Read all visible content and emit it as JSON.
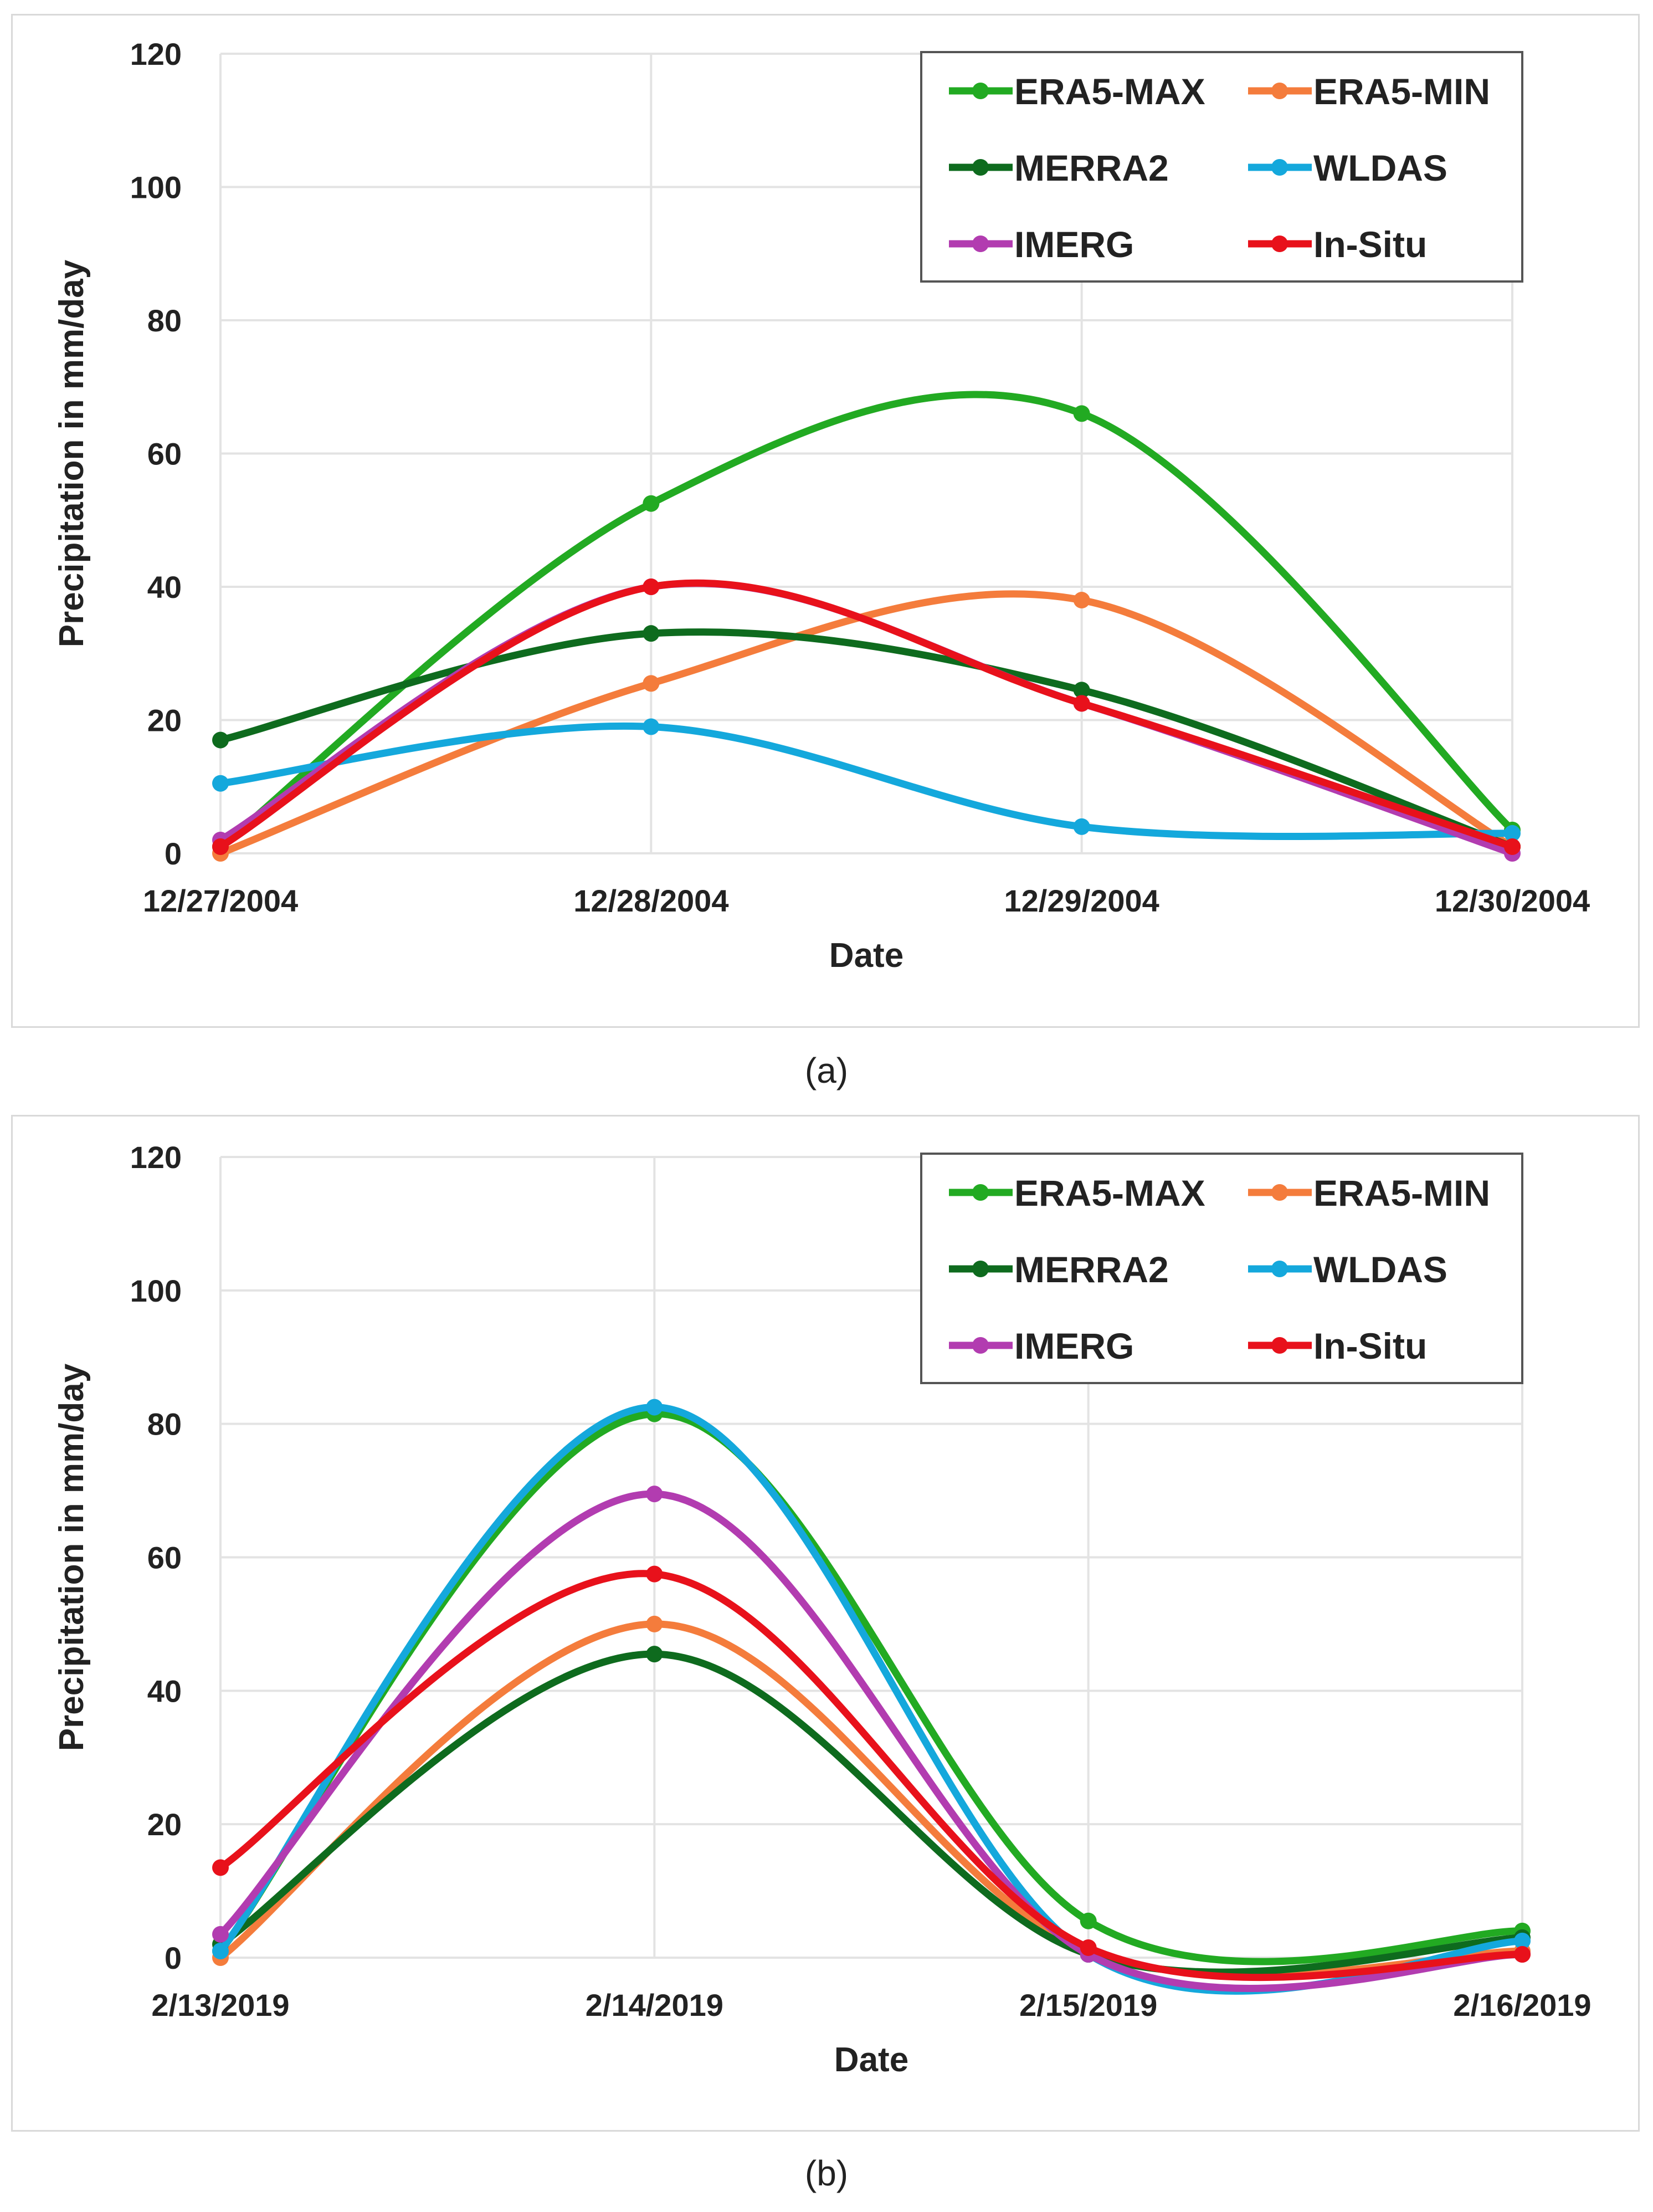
{
  "chart_data": [
    {
      "type": "line",
      "panel_label": "(a)",
      "xlabel": "Date",
      "ylabel": "Precipitation in mm/day",
      "ylim": [
        0,
        120
      ],
      "yticks": [
        0,
        20,
        40,
        60,
        80,
        100,
        120
      ],
      "grid": true,
      "legend_position": "top-right",
      "categories": [
        "12/27/2004",
        "12/28/2004",
        "12/29/2004",
        "12/30/2004"
      ],
      "series": [
        {
          "name": "ERA5-MAX",
          "color": "#22aa22",
          "values": [
            1,
            52.5,
            66,
            3.5
          ]
        },
        {
          "name": "ERA5-MIN",
          "color": "#f47c3c",
          "values": [
            0,
            25.5,
            38,
            1
          ]
        },
        {
          "name": "MERRA2",
          "color": "#0e6b1e",
          "values": [
            17,
            33,
            24.5,
            1
          ]
        },
        {
          "name": "WLDAS",
          "color": "#14a8dc",
          "values": [
            10.5,
            19,
            4,
            3
          ]
        },
        {
          "name": "IMERG",
          "color": "#b23cb0",
          "values": [
            2,
            40,
            22.5,
            0
          ]
        },
        {
          "name": "In-Situ",
          "color": "#e8111b",
          "values": [
            1,
            40,
            22.5,
            1
          ]
        }
      ]
    },
    {
      "type": "line",
      "panel_label": "(b)",
      "xlabel": "Date",
      "ylabel": "Precipitation in mm/day",
      "ylim": [
        0,
        120
      ],
      "yticks": [
        0,
        20,
        40,
        60,
        80,
        100,
        120
      ],
      "grid": true,
      "legend_position": "top-right",
      "categories": [
        "2/13/2019",
        "2/14/2019",
        "2/15/2019",
        "2/16/2019"
      ],
      "series": [
        {
          "name": "ERA5-MAX",
          "color": "#22aa22",
          "values": [
            1,
            81.5,
            5.5,
            4
          ]
        },
        {
          "name": "ERA5-MIN",
          "color": "#f47c3c",
          "values": [
            0,
            50,
            1,
            1
          ]
        },
        {
          "name": "MERRA2",
          "color": "#0e6b1e",
          "values": [
            2,
            45.5,
            0.5,
            3
          ]
        },
        {
          "name": "WLDAS",
          "color": "#14a8dc",
          "values": [
            1,
            82.5,
            0.5,
            2.5
          ]
        },
        {
          "name": "IMERG",
          "color": "#b23cb0",
          "values": [
            3.5,
            69.5,
            0.5,
            0.5
          ]
        },
        {
          "name": "In-Situ",
          "color": "#e8111b",
          "values": [
            13.5,
            57.5,
            1.5,
            0.5
          ]
        }
      ]
    }
  ]
}
